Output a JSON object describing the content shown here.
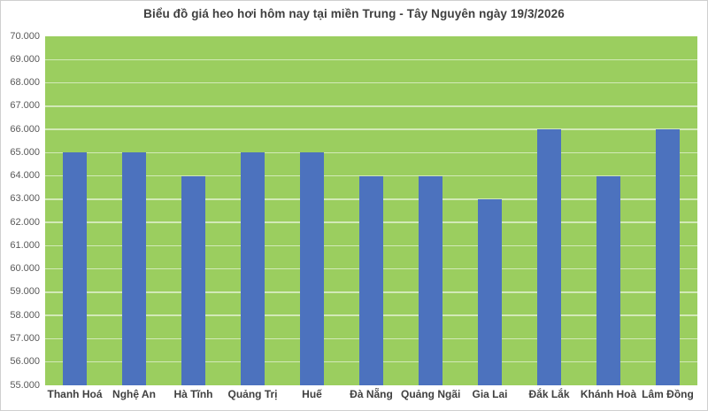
{
  "chart_data": {
    "type": "bar",
    "title": "Biểu đồ giá heo hơi hôm nay tại miền Trung - Tây Nguyên ngày 19/3/2026",
    "categories": [
      "Thanh Hoá",
      "Nghệ An",
      "Hà Tĩnh",
      "Quảng Trị",
      "Huế",
      "Đà Nẵng",
      "Quảng Ngãi",
      "Gia Lai",
      "Đắk Lắk",
      "Khánh Hoà",
      "Lâm Đồng"
    ],
    "values": [
      65000,
      65000,
      64000,
      65000,
      65000,
      64000,
      64000,
      63000,
      66000,
      64000,
      66000
    ],
    "xlabel": "",
    "ylabel": "",
    "ylim": [
      55000,
      70000
    ],
    "y_tick_step": 1000,
    "y_tick_labels": [
      "70.000",
      "69.000",
      "68.000",
      "67.000",
      "66.000",
      "65.000",
      "64.000",
      "63.000",
      "62.000",
      "61.000",
      "60.000",
      "59.000",
      "58.000",
      "57.000",
      "56.000",
      "55.000"
    ],
    "grid": "horizontal",
    "legend": "none",
    "colors": {
      "bar": "#4C72BE",
      "plot_background": "#9BCE5F",
      "gridline": "rgba(255,255,255,0.55)",
      "title_text": "#3f3f3f",
      "axis_text": "#595959",
      "category_text": "#404040",
      "chart_border": "#cfcfcf"
    }
  }
}
